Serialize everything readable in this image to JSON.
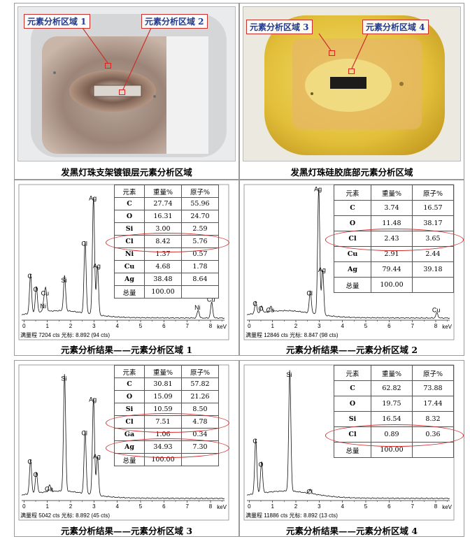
{
  "photos": [
    {
      "caption": "发黑灯珠支架镀银层元素分析区域",
      "labels": [
        "元素分析区域 1",
        "元素分析区域 2"
      ]
    },
    {
      "caption": "发黑灯珠硅胶底部元素分析区域",
      "labels": [
        "元素分析区域 3",
        "元素分析区域 4"
      ]
    }
  ],
  "table_headers": {
    "element": "元素",
    "weight": "重量%",
    "atomic": "原子%"
  },
  "total_label": "总量",
  "kev": "keV",
  "colors": {
    "highlight": "#d42b2b",
    "label_text": "#1f3a93",
    "spectrum": "#111111"
  },
  "chart_data": [
    {
      "type": "table",
      "caption": "元素分析结果——元素分析区域 1",
      "footer": "满量程 7204 cts 光标: 8.892  (94 cts)",
      "rows": [
        {
          "el": "C",
          "w": "27.74",
          "a": "55.96"
        },
        {
          "el": "O",
          "w": "16.31",
          "a": "24.70"
        },
        {
          "el": "Si",
          "w": "3.00",
          "a": "2.59"
        },
        {
          "el": "Cl",
          "w": "8.42",
          "a": "5.76"
        },
        {
          "el": "Ni",
          "w": "1.37",
          "a": "0.57"
        },
        {
          "el": "Cu",
          "w": "4.68",
          "a": "1.78"
        },
        {
          "el": "Ag",
          "w": "38.48",
          "a": "8.64"
        }
      ],
      "total": "100.00",
      "highlight_rows": [
        "Cl"
      ],
      "xticks": [
        "0",
        "1",
        "2",
        "3",
        "4",
        "5",
        "6",
        "7",
        "8"
      ],
      "peaks": [
        {
          "label": "C",
          "x": 0.28,
          "h": 0.3
        },
        {
          "label": "O",
          "x": 0.53,
          "h": 0.2
        },
        {
          "label": "Cu",
          "x": 0.93,
          "h": 0.17
        },
        {
          "label": "Ni",
          "x": 0.85,
          "h": 0.07
        },
        {
          "label": "Si",
          "x": 1.74,
          "h": 0.27
        },
        {
          "label": "Cl",
          "x": 2.62,
          "h": 0.55
        },
        {
          "label": "Ag",
          "x": 2.98,
          "h": 0.9
        },
        {
          "label": "Ag",
          "x": 3.15,
          "h": 0.38
        },
        {
          "label": "Ni",
          "x": 7.47,
          "h": 0.06
        },
        {
          "label": "Cu",
          "x": 8.05,
          "h": 0.12
        }
      ]
    },
    {
      "type": "table",
      "caption": "元素分析结果——元素分析区域 2",
      "footer": "满量程 12846 cts 光标: 8.847  (98 cts)",
      "rows": [
        {
          "el": "C",
          "w": "3.74",
          "a": "16.57"
        },
        {
          "el": "O",
          "w": "11.48",
          "a": "38.17"
        },
        {
          "el": "Cl",
          "w": "2.43",
          "a": "3.65"
        },
        {
          "el": "Cu",
          "w": "2.91",
          "a": "2.44"
        },
        {
          "el": "Ag",
          "w": "79.44",
          "a": "39.18"
        }
      ],
      "total": "100.00",
      "highlight_rows": [
        "Cl"
      ],
      "xticks": [
        "0",
        "1",
        "2",
        "3",
        "4",
        "5",
        "6",
        "7",
        "8"
      ],
      "peaks": [
        {
          "label": "C",
          "x": 0.28,
          "h": 0.09
        },
        {
          "label": "O",
          "x": 0.53,
          "h": 0.05
        },
        {
          "label": "Cu",
          "x": 0.93,
          "h": 0.04
        },
        {
          "label": "Cl",
          "x": 2.62,
          "h": 0.17
        },
        {
          "label": "Ag",
          "x": 2.98,
          "h": 0.97
        },
        {
          "label": "Ag",
          "x": 3.15,
          "h": 0.35
        },
        {
          "label": "Cu",
          "x": 8.05,
          "h": 0.04
        }
      ]
    },
    {
      "type": "table",
      "caption": "元素分析结果——元素分析区域 3",
      "footer": "满量程 5042 cts 光标: 8.892  (45 cts)",
      "rows": [
        {
          "el": "C",
          "w": "30.81",
          "a": "57.82"
        },
        {
          "el": "O",
          "w": "15.09",
          "a": "21.26"
        },
        {
          "el": "Si",
          "w": "10.59",
          "a": "8.50"
        },
        {
          "el": "Cl",
          "w": "7.51",
          "a": "4.78"
        },
        {
          "el": "Ga",
          "w": "1.06",
          "a": "0.34"
        },
        {
          "el": "Ag",
          "w": "34.93",
          "a": "7.30"
        }
      ],
      "total": "100.00",
      "highlight_rows": [
        "Cl",
        "Ag"
      ],
      "xticks": [
        "0",
        "1",
        "2",
        "3",
        "4",
        "5",
        "6",
        "7",
        "8"
      ],
      "peaks": [
        {
          "label": "C",
          "x": 0.28,
          "h": 0.26
        },
        {
          "label": "O",
          "x": 0.53,
          "h": 0.16
        },
        {
          "label": "Ga",
          "x": 1.1,
          "h": 0.05
        },
        {
          "label": "Si",
          "x": 1.74,
          "h": 0.9
        },
        {
          "label": "Cl",
          "x": 2.62,
          "h": 0.48
        },
        {
          "label": "Ag",
          "x": 2.98,
          "h": 0.74
        },
        {
          "label": "Ag",
          "x": 3.15,
          "h": 0.3
        }
      ]
    },
    {
      "type": "table",
      "caption": "元素分析结果——元素分析区域 4",
      "footer": "满量程 11886 cts 光标: 8.892  (13 cts)",
      "rows": [
        {
          "el": "C",
          "w": "62.82",
          "a": "73.88"
        },
        {
          "el": "O",
          "w": "19.75",
          "a": "17.44"
        },
        {
          "el": "Si",
          "w": "16.54",
          "a": "8.32"
        },
        {
          "el": "Cl",
          "w": "0.89",
          "a": "0.36"
        }
      ],
      "total": "100.00",
      "highlight_rows": [
        "Cl"
      ],
      "xticks": [
        "0",
        "1",
        "2",
        "3",
        "4",
        "5",
        "6",
        "7",
        "8"
      ],
      "peaks": [
        {
          "label": "C",
          "x": 0.28,
          "h": 0.42
        },
        {
          "label": "O",
          "x": 0.53,
          "h": 0.24
        },
        {
          "label": "Si",
          "x": 1.74,
          "h": 0.93
        },
        {
          "label": "Cl",
          "x": 2.62,
          "h": 0.03
        }
      ]
    }
  ]
}
